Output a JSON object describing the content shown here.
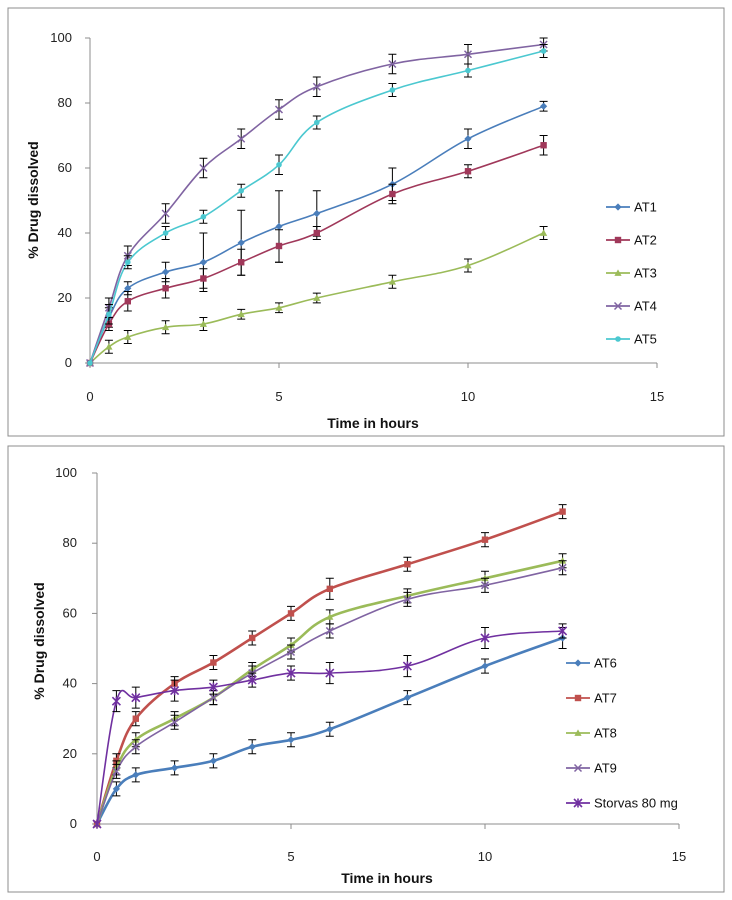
{
  "chart_data": [
    {
      "type": "line",
      "title": "",
      "xlabel": "Time in hours",
      "ylabel": "% Drug dissolved",
      "xlim": [
        0,
        15
      ],
      "ylim": [
        0,
        100
      ],
      "xticks": [
        "0",
        "5",
        "10",
        "15"
      ],
      "yticks": [
        "0",
        "20",
        "40",
        "60",
        "80",
        "100"
      ],
      "grid": false,
      "legend_position": "right",
      "x": [
        0,
        0.5,
        1,
        2,
        3,
        4,
        5,
        6,
        8,
        10,
        12
      ],
      "series": [
        {
          "name": "AT1",
          "color": "#4a7ebb",
          "marker": "diamond",
          "values": [
            0,
            14,
            23,
            28,
            31,
            37,
            42,
            46,
            55,
            69,
            79
          ],
          "errors": [
            0,
            3,
            2,
            3,
            9,
            10,
            11,
            7,
            5,
            3,
            1.5
          ]
        },
        {
          "name": "AT2",
          "color": "#a0385a",
          "marker": "square",
          "values": [
            0,
            12,
            19,
            23,
            26,
            31,
            36,
            40,
            52,
            59,
            67
          ],
          "errors": [
            0,
            2,
            3,
            3,
            3,
            4,
            5,
            2,
            3,
            2,
            3
          ]
        },
        {
          "name": "AT3",
          "color": "#9bbb59",
          "marker": "triangle",
          "values": [
            0,
            5,
            8,
            11,
            12,
            15,
            17,
            20,
            25,
            30,
            40
          ],
          "errors": [
            0,
            2,
            2,
            2,
            2,
            1.5,
            1.5,
            1.5,
            2,
            2,
            2
          ]
        },
        {
          "name": "AT4",
          "color": "#8064a2",
          "marker": "x",
          "values": [
            0,
            17,
            33,
            46,
            60,
            69,
            78,
            85,
            92,
            95,
            98
          ],
          "errors": [
            0,
            3,
            3,
            3,
            3,
            3,
            3,
            3,
            3,
            3,
            2
          ]
        },
        {
          "name": "AT5",
          "color": "#4bc8d0",
          "marker": "circle",
          "values": [
            0,
            15,
            31,
            40,
            45,
            53,
            61,
            74,
            84,
            90,
            96
          ],
          "errors": [
            0,
            3,
            2,
            2,
            2,
            2,
            3,
            2,
            2,
            2,
            2
          ]
        }
      ]
    },
    {
      "type": "line",
      "title": "",
      "xlabel": "Time in hours",
      "ylabel": "% Drug dissolved",
      "xlim": [
        0,
        15
      ],
      "ylim": [
        0,
        100
      ],
      "xticks": [
        "0",
        "5",
        "10",
        "15"
      ],
      "yticks": [
        "0",
        "20",
        "40",
        "60",
        "80",
        "100"
      ],
      "grid": false,
      "legend_position": "right",
      "x": [
        0,
        0.5,
        1,
        2,
        3,
        4,
        5,
        6,
        8,
        10,
        12
      ],
      "series": [
        {
          "name": "AT6",
          "color": "#4a7ebb",
          "marker": "diamond",
          "values": [
            0,
            10,
            14,
            16,
            18,
            22,
            24,
            27,
            36,
            45,
            53
          ],
          "errors": [
            0,
            2,
            2,
            2,
            2,
            2,
            2,
            2,
            2,
            2,
            3
          ]
        },
        {
          "name": "AT7",
          "color": "#c0504d",
          "marker": "square",
          "values": [
            0,
            18,
            30,
            40,
            46,
            53,
            60,
            67,
            74,
            81,
            89
          ],
          "errors": [
            0,
            2,
            2,
            2,
            2,
            2,
            2,
            3,
            2,
            2,
            2
          ]
        },
        {
          "name": "AT8",
          "color": "#9bbb59",
          "marker": "triangle",
          "values": [
            0,
            16,
            24,
            30,
            36,
            44,
            51,
            59,
            65,
            70,
            75
          ],
          "errors": [
            0,
            2,
            2,
            2,
            2,
            2,
            2,
            2,
            2,
            2,
            2
          ]
        },
        {
          "name": "AT9",
          "color": "#8064a2",
          "marker": "x",
          "values": [
            0,
            15,
            22,
            29,
            36,
            43,
            49,
            55,
            64,
            68,
            73
          ],
          "errors": [
            0,
            2,
            2,
            2,
            2,
            2,
            2,
            2,
            2,
            2,
            2
          ]
        },
        {
          "name": "Storvas 80 mg",
          "color": "#7030a0",
          "marker": "asterisk",
          "values": [
            0,
            35,
            36,
            38,
            39,
            41,
            43,
            43,
            45,
            53,
            55
          ],
          "errors": [
            0,
            3,
            3,
            3,
            2,
            2,
            2,
            3,
            3,
            3,
            2
          ]
        }
      ]
    }
  ]
}
